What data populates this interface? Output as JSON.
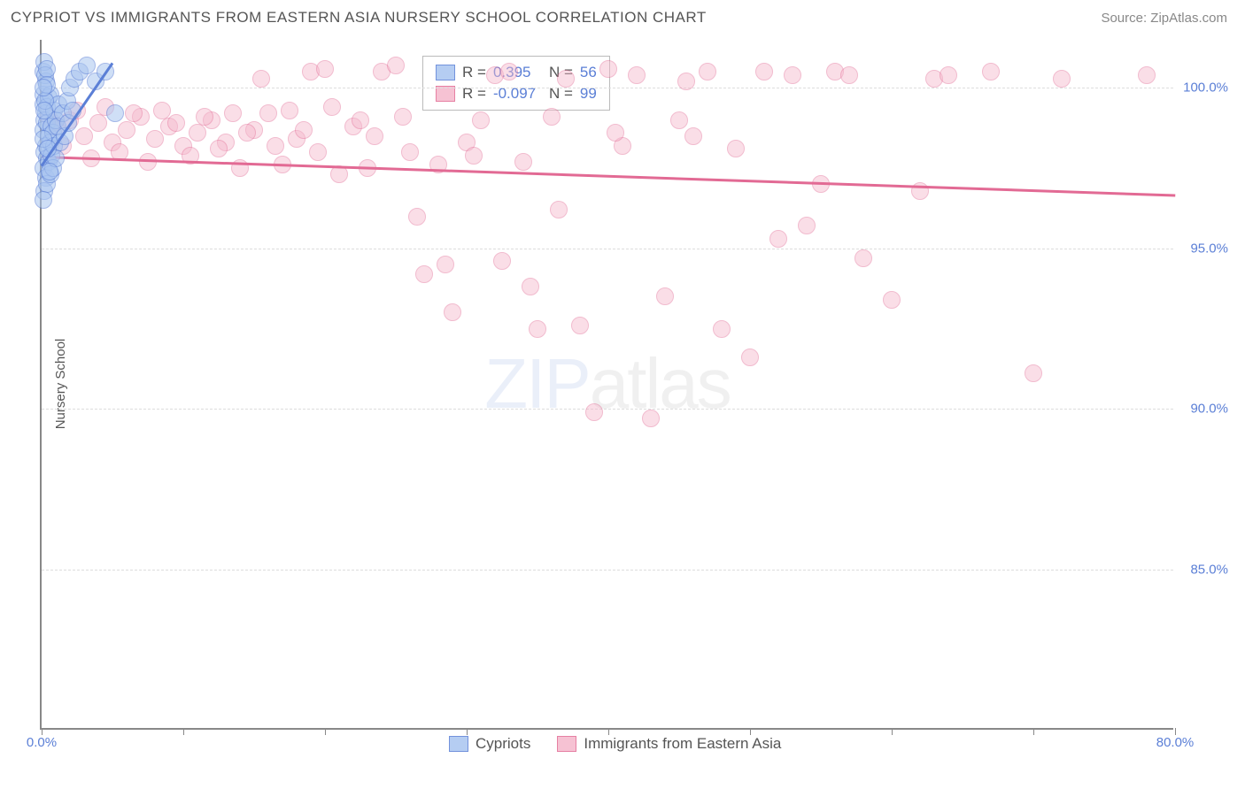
{
  "header": {
    "title": "CYPRIOT VS IMMIGRANTS FROM EASTERN ASIA NURSERY SCHOOL CORRELATION CHART",
    "source": "Source: ZipAtlas.com"
  },
  "chart": {
    "type": "scatter",
    "y_axis_label": "Nursery School",
    "x_range": [
      0,
      80
    ],
    "y_range": [
      80,
      101.5
    ],
    "y_ticks": [
      85.0,
      90.0,
      95.0,
      100.0
    ],
    "y_tick_labels": [
      "85.0%",
      "90.0%",
      "95.0%",
      "100.0%"
    ],
    "x_ticks": [
      0,
      10,
      20,
      30,
      40,
      50,
      60,
      70,
      80
    ],
    "x_tick_labels_shown": {
      "0": "0.0%",
      "80": "80.0%"
    },
    "background_color": "#ffffff",
    "grid_color": "#dddddd",
    "axis_color": "#888888",
    "tick_label_color": "#5b7fd6",
    "series": {
      "cypriots": {
        "label": "Cypriots",
        "fill": "#a9c5f0",
        "stroke": "#5b7fd6",
        "fill_opacity": 0.55,
        "marker_radius": 10,
        "R": "0.395",
        "N": "56",
        "trend": {
          "x1": 0,
          "y1": 97.6,
          "x2": 5,
          "y2": 100.8,
          "color": "#5b7fd6"
        },
        "points": [
          [
            0.1,
            100.5
          ],
          [
            0.2,
            100.8
          ],
          [
            0.3,
            100.2
          ],
          [
            0.15,
            99.8
          ],
          [
            0.25,
            100.4
          ],
          [
            0.4,
            100.6
          ],
          [
            0.1,
            99.5
          ],
          [
            0.3,
            99.2
          ],
          [
            0.5,
            99.7
          ],
          [
            0.2,
            99.0
          ],
          [
            0.4,
            99.4
          ],
          [
            0.6,
            99.8
          ],
          [
            0.15,
            98.7
          ],
          [
            0.35,
            98.9
          ],
          [
            0.5,
            98.5
          ],
          [
            0.3,
            98.2
          ],
          [
            0.7,
            98.8
          ],
          [
            0.9,
            99.3
          ],
          [
            0.2,
            98.0
          ],
          [
            0.4,
            97.8
          ],
          [
            0.6,
            98.3
          ],
          [
            0.8,
            98.6
          ],
          [
            1.0,
            99.0
          ],
          [
            1.2,
            99.5
          ],
          [
            0.1,
            97.5
          ],
          [
            0.3,
            97.2
          ],
          [
            0.5,
            97.7
          ],
          [
            0.7,
            97.9
          ],
          [
            0.9,
            98.2
          ],
          [
            1.1,
            98.8
          ],
          [
            1.5,
            99.2
          ],
          [
            1.8,
            99.6
          ],
          [
            2.0,
            100.0
          ],
          [
            2.3,
            100.3
          ],
          [
            2.7,
            100.5
          ],
          [
            3.2,
            100.7
          ],
          [
            0.2,
            96.8
          ],
          [
            0.4,
            97.0
          ],
          [
            0.6,
            97.3
          ],
          [
            0.8,
            97.5
          ],
          [
            1.0,
            97.8
          ],
          [
            1.3,
            98.3
          ],
          [
            3.8,
            100.2
          ],
          [
            4.5,
            100.5
          ],
          [
            5.2,
            99.2
          ],
          [
            1.6,
            98.5
          ],
          [
            1.9,
            98.9
          ],
          [
            2.2,
            99.3
          ],
          [
            0.1,
            96.5
          ],
          [
            0.15,
            98.4
          ],
          [
            0.25,
            99.6
          ],
          [
            0.35,
            100.1
          ],
          [
            0.45,
            98.1
          ],
          [
            0.55,
            97.4
          ],
          [
            0.12,
            100.0
          ],
          [
            0.18,
            99.3
          ]
        ]
      },
      "immigrants": {
        "label": "Immigrants from Eastern Asia",
        "fill": "#f5b8cc",
        "stroke": "#e26a94",
        "fill_opacity": 0.45,
        "marker_radius": 10,
        "R": "-0.097",
        "N": "99",
        "trend": {
          "x1": 0,
          "y1": 97.9,
          "x2": 80,
          "y2": 96.7,
          "color": "#e26a94"
        },
        "points": [
          [
            1,
            98.8
          ],
          [
            2,
            99.0
          ],
          [
            3,
            98.5
          ],
          [
            4,
            98.9
          ],
          [
            5,
            98.3
          ],
          [
            6,
            98.7
          ],
          [
            7,
            99.1
          ],
          [
            8,
            98.4
          ],
          [
            9,
            98.8
          ],
          [
            10,
            98.2
          ],
          [
            11,
            98.6
          ],
          [
            12,
            99.0
          ],
          [
            13,
            98.3
          ],
          [
            14,
            97.5
          ],
          [
            15,
            98.7
          ],
          [
            16,
            99.2
          ],
          [
            17,
            97.6
          ],
          [
            18,
            98.4
          ],
          [
            19,
            100.5
          ],
          [
            20,
            100.6
          ],
          [
            21,
            97.3
          ],
          [
            22,
            98.8
          ],
          [
            23,
            97.5
          ],
          [
            24,
            100.5
          ],
          [
            25,
            100.7
          ],
          [
            26,
            98.0
          ],
          [
            27,
            94.2
          ],
          [
            28,
            97.6
          ],
          [
            29,
            93.0
          ],
          [
            30,
            98.3
          ],
          [
            31,
            99.0
          ],
          [
            32,
            100.4
          ],
          [
            33,
            100.5
          ],
          [
            34,
            97.7
          ],
          [
            35,
            92.5
          ],
          [
            36,
            99.1
          ],
          [
            37,
            100.3
          ],
          [
            38,
            92.6
          ],
          [
            39,
            89.9
          ],
          [
            40,
            100.6
          ],
          [
            41,
            98.2
          ],
          [
            42,
            100.4
          ],
          [
            43,
            89.7
          ],
          [
            44,
            93.5
          ],
          [
            45,
            99.0
          ],
          [
            46,
            98.5
          ],
          [
            47,
            100.5
          ],
          [
            48,
            92.5
          ],
          [
            49,
            98.1
          ],
          [
            50,
            91.6
          ],
          [
            51,
            100.5
          ],
          [
            52,
            95.3
          ],
          [
            53,
            100.4
          ],
          [
            54,
            95.7
          ],
          [
            55,
            97.0
          ],
          [
            56,
            100.5
          ],
          [
            57,
            100.4
          ],
          [
            58,
            94.7
          ],
          [
            60,
            93.4
          ],
          [
            62,
            96.8
          ],
          [
            63,
            100.3
          ],
          [
            64,
            100.4
          ],
          [
            67,
            100.5
          ],
          [
            70,
            91.1
          ],
          [
            72,
            100.3
          ],
          [
            78,
            100.4
          ],
          [
            2.5,
            99.3
          ],
          [
            3.5,
            97.8
          ],
          [
            4.5,
            99.4
          ],
          [
            5.5,
            98.0
          ],
          [
            6.5,
            99.2
          ],
          [
            7.5,
            97.7
          ],
          [
            8.5,
            99.3
          ],
          [
            9.5,
            98.9
          ],
          [
            10.5,
            97.9
          ],
          [
            11.5,
            99.1
          ],
          [
            12.5,
            98.1
          ],
          [
            13.5,
            99.2
          ],
          [
            14.5,
            98.6
          ],
          [
            15.5,
            100.3
          ],
          [
            16.5,
            98.2
          ],
          [
            17.5,
            99.3
          ],
          [
            18.5,
            98.7
          ],
          [
            1.5,
            98.2
          ],
          [
            0.8,
            98.9
          ],
          [
            0.5,
            99.1
          ],
          [
            19.5,
            98.0
          ],
          [
            20.5,
            99.4
          ],
          [
            22.5,
            99.0
          ],
          [
            23.5,
            98.5
          ],
          [
            25.5,
            99.1
          ],
          [
            26.5,
            96.0
          ],
          [
            28.5,
            94.5
          ],
          [
            30.5,
            97.9
          ],
          [
            32.5,
            94.6
          ],
          [
            34.5,
            93.8
          ],
          [
            36.5,
            96.2
          ],
          [
            40.5,
            98.6
          ],
          [
            45.5,
            100.2
          ]
        ]
      }
    },
    "legend_top_labels": {
      "R_prefix": "R =",
      "N_prefix": "N ="
    },
    "watermark": {
      "zip": "ZIP",
      "atlas": "atlas"
    }
  }
}
